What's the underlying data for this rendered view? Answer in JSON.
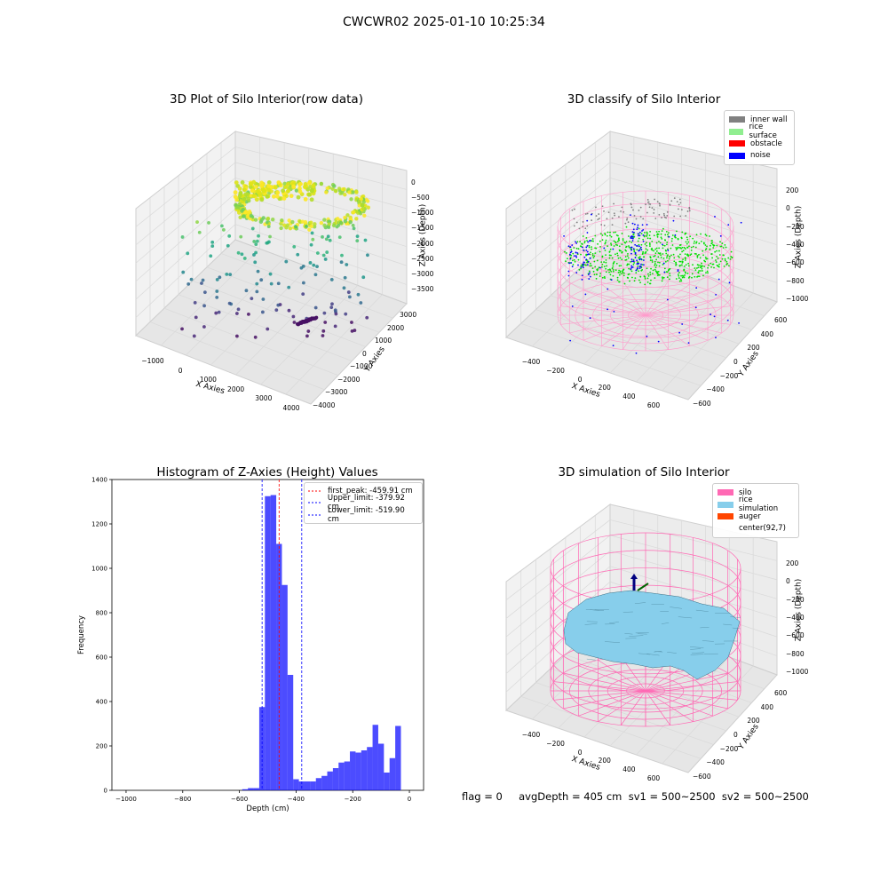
{
  "suptitle": "CWCWR02 2025-01-10 10:25:34",
  "panel_raw": {
    "title": "3D Plot of Silo Interior(row data)",
    "xlabel": "X Axies",
    "ylabel": "Y Axies",
    "zlabel": "Z Axies (Depth)",
    "xticks": [
      "−1000",
      "0",
      "1000",
      "2000",
      "3000",
      "4000"
    ],
    "yticks": [
      "3000",
      "2000",
      "1000",
      "0",
      "−1000",
      "−2000",
      "−3000",
      "−4000"
    ],
    "zticks": [
      "0",
      "−500",
      "−1000",
      "−1500",
      "−2000",
      "−2500",
      "−3000",
      "−3500"
    ]
  },
  "panel_classify": {
    "title": "3D classify of Silo Interior",
    "xlabel": "X Axies",
    "ylabel": "Y Axies",
    "zlabel": "Z Axies (Depth)",
    "xticks": [
      "−400",
      "−200",
      "0",
      "200",
      "400",
      "600"
    ],
    "yticks": [
      "600",
      "400",
      "200",
      "0",
      "−200",
      "−400",
      "−600"
    ],
    "zticks": [
      "200",
      "0",
      "−200",
      "−400",
      "−600",
      "−800",
      "−1000"
    ],
    "legend": [
      {
        "label": "inner wall",
        "color": "#808080"
      },
      {
        "label": "rice surface",
        "color": "#90ee90"
      },
      {
        "label": "obstacle",
        "color": "#ff0000"
      },
      {
        "label": "noise",
        "color": "#0000ff"
      }
    ]
  },
  "panel_sim": {
    "title": "3D simulation of Silo Interior",
    "xlabel": "X Axies",
    "ylabel": "Y Axies",
    "zlabel": "Z Axies (Depth)",
    "xticks": [
      "−400",
      "−200",
      "0",
      "200",
      "400",
      "600"
    ],
    "yticks": [
      "600",
      "400",
      "200",
      "0",
      "−200",
      "−400",
      "−600"
    ],
    "zticks": [
      "200",
      "0",
      "−200",
      "−400",
      "−600",
      "−800",
      "−1000"
    ],
    "legend": [
      {
        "label": "silo",
        "color": "#ff69b4"
      },
      {
        "label": "rice simulation",
        "color": "#87ceeb"
      },
      {
        "label": "auger",
        "color": "#ff4500"
      },
      {
        "label": "center(92,7)",
        "color": ""
      }
    ]
  },
  "chart_data": {
    "type": "bar",
    "title": "Histogram of Z-Axies (Height) Values",
    "xlabel": "Depth (cm)",
    "ylabel": "Frequency",
    "xlim": [
      -1050,
      50
    ],
    "ylim": [
      0,
      1400
    ],
    "xticks": [
      -1000,
      -800,
      -600,
      -400,
      -200,
      0
    ],
    "yticks": [
      0,
      200,
      400,
      600,
      800,
      1000,
      1200,
      1400
    ],
    "bar_color": "#0000ff",
    "bin_width": 20,
    "bins": [
      {
        "x": -580,
        "count": 5
      },
      {
        "x": -560,
        "count": 10
      },
      {
        "x": -540,
        "count": 10
      },
      {
        "x": -520,
        "count": 375
      },
      {
        "x": -500,
        "count": 1325
      },
      {
        "x": -480,
        "count": 1330
      },
      {
        "x": -460,
        "count": 1110
      },
      {
        "x": -440,
        "count": 925
      },
      {
        "x": -420,
        "count": 520
      },
      {
        "x": -400,
        "count": 50
      },
      {
        "x": -380,
        "count": 40
      },
      {
        "x": -360,
        "count": 40
      },
      {
        "x": -340,
        "count": 40
      },
      {
        "x": -320,
        "count": 55
      },
      {
        "x": -300,
        "count": 65
      },
      {
        "x": -280,
        "count": 85
      },
      {
        "x": -260,
        "count": 100
      },
      {
        "x": -240,
        "count": 125
      },
      {
        "x": -220,
        "count": 130
      },
      {
        "x": -200,
        "count": 175
      },
      {
        "x": -180,
        "count": 170
      },
      {
        "x": -160,
        "count": 180
      },
      {
        "x": -140,
        "count": 195
      },
      {
        "x": -120,
        "count": 295
      },
      {
        "x": -100,
        "count": 210
      },
      {
        "x": -80,
        "count": 80
      },
      {
        "x": -60,
        "count": 145
      },
      {
        "x": -40,
        "count": 290
      }
    ],
    "vlines": [
      {
        "x": -459.91,
        "color": "#ff0000",
        "label": "first_peak: -459.91 cm"
      },
      {
        "x": -379.92,
        "color": "#0000ff",
        "label": "Upper_limit: -379.92 cm"
      },
      {
        "x": -519.9,
        "color": "#0000ff",
        "label": "Lower_limit: -519.90 cm"
      }
    ],
    "legend_position": "upper right"
  },
  "status_line": "flag = 0     avgDepth = 405 cm  sv1 = 500~2500  sv2 = 500~2500"
}
